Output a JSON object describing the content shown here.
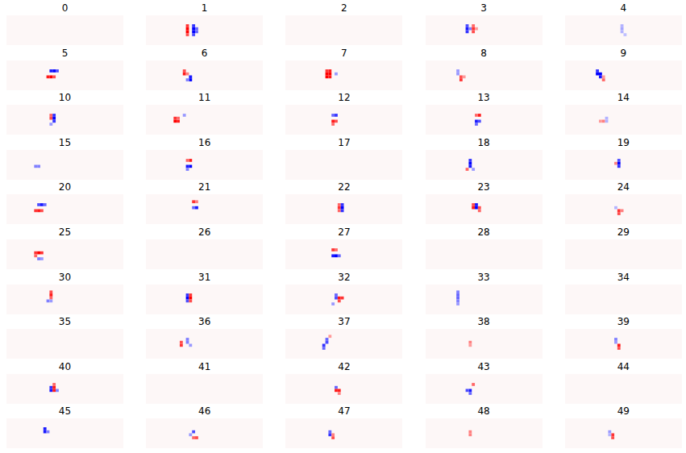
{
  "chart_data": {
    "type": "heatmap",
    "tick_labels": false,
    "grid_size": [
      38,
      10
    ],
    "color_range": [
      -1,
      1
    ],
    "panels": [
      {
        "title": "0",
        "cells": []
      },
      {
        "title": "1",
        "cells": [
          [
            13,
            3,
            0.8
          ],
          [
            13,
            4,
            1
          ],
          [
            13,
            5,
            1
          ],
          [
            13,
            6,
            0.7
          ],
          [
            15,
            3,
            -0.8
          ],
          [
            15,
            4,
            -1
          ],
          [
            15,
            5,
            -1
          ],
          [
            15,
            6,
            -0.7
          ],
          [
            16,
            4,
            -0.6
          ],
          [
            16,
            5,
            -0.6
          ]
        ]
      },
      {
        "title": "2",
        "cells": []
      },
      {
        "title": "3",
        "cells": [
          [
            13,
            3,
            -0.7
          ],
          [
            13,
            4,
            -0.9
          ],
          [
            13,
            5,
            -0.8
          ],
          [
            14,
            4,
            -0.5
          ],
          [
            15,
            3,
            0.6
          ],
          [
            15,
            4,
            0.8
          ],
          [
            15,
            5,
            0.7
          ],
          [
            16,
            4,
            0.4
          ]
        ]
      },
      {
        "title": "4",
        "cells": [
          [
            18,
            3,
            -0.3
          ],
          [
            18,
            4,
            -0.35
          ],
          [
            18,
            5,
            -0.3
          ],
          [
            19,
            6,
            -0.25
          ]
        ]
      },
      {
        "title": "5",
        "cells": [
          [
            14,
            3,
            -0.9
          ],
          [
            15,
            3,
            -1
          ],
          [
            16,
            3,
            -0.7
          ],
          [
            13,
            5,
            0.9
          ],
          [
            14,
            5,
            1
          ],
          [
            15,
            5,
            0.7
          ]
        ]
      },
      {
        "title": "6",
        "cells": [
          [
            12,
            3,
            0.7
          ],
          [
            12,
            4,
            0.9
          ],
          [
            13,
            4,
            0.5
          ],
          [
            14,
            5,
            -0.9
          ],
          [
            14,
            6,
            -1
          ],
          [
            13,
            6,
            -0.5
          ]
        ]
      },
      {
        "title": "7",
        "cells": [
          [
            13,
            3,
            0.8
          ],
          [
            13,
            4,
            1
          ],
          [
            13,
            5,
            1
          ],
          [
            14,
            3,
            0.9
          ],
          [
            14,
            4,
            1
          ],
          [
            14,
            5,
            0.9
          ],
          [
            16,
            4,
            -0.4
          ]
        ]
      },
      {
        "title": "8",
        "cells": [
          [
            10,
            3,
            -0.4
          ],
          [
            10,
            4,
            -0.4
          ],
          [
            11,
            5,
            0.7
          ],
          [
            11,
            6,
            0.8
          ],
          [
            12,
            5,
            0.4
          ]
        ]
      },
      {
        "title": "9",
        "cells": [
          [
            10,
            3,
            -0.8
          ],
          [
            10,
            4,
            -1
          ],
          [
            11,
            4,
            -1
          ],
          [
            11,
            5,
            -0.9
          ],
          [
            12,
            6,
            0.6
          ],
          [
            12,
            5,
            0.4
          ]
        ]
      },
      {
        "title": "10",
        "cells": [
          [
            14,
            3,
            0.6
          ],
          [
            14,
            4,
            0.7
          ],
          [
            15,
            3,
            -0.8
          ],
          [
            15,
            4,
            -1
          ],
          [
            15,
            5,
            -0.8
          ],
          [
            14,
            6,
            -0.4
          ]
        ]
      },
      {
        "title": "11",
        "cells": [
          [
            9,
            4,
            0.8
          ],
          [
            9,
            5,
            1
          ],
          [
            10,
            5,
            0.9
          ],
          [
            10,
            4,
            0.6
          ],
          [
            12,
            3,
            -0.4
          ]
        ]
      },
      {
        "title": "12",
        "cells": [
          [
            16,
            3,
            -0.8
          ],
          [
            15,
            3,
            -0.6
          ],
          [
            15,
            5,
            0.9
          ],
          [
            16,
            5,
            0.7
          ],
          [
            15,
            6,
            0.6
          ]
        ]
      },
      {
        "title": "13",
        "cells": [
          [
            17,
            3,
            0.9
          ],
          [
            16,
            3,
            0.6
          ],
          [
            16,
            5,
            -0.9
          ],
          [
            17,
            5,
            -0.7
          ],
          [
            16,
            6,
            -0.6
          ]
        ]
      },
      {
        "title": "14",
        "cells": [
          [
            11,
            5,
            0.4
          ],
          [
            12,
            5,
            0.5
          ],
          [
            13,
            4,
            -0.3
          ],
          [
            13,
            5,
            -0.3
          ]
        ]
      },
      {
        "title": "15",
        "cells": [
          [
            9,
            5,
            -0.5
          ],
          [
            10,
            5,
            -0.5
          ]
        ]
      },
      {
        "title": "16",
        "cells": [
          [
            14,
            3,
            0.9
          ],
          [
            13,
            3,
            0.6
          ],
          [
            13,
            5,
            -0.9
          ],
          [
            14,
            5,
            -1
          ],
          [
            13,
            6,
            -0.5
          ]
        ]
      },
      {
        "title": "17",
        "cells": []
      },
      {
        "title": "18",
        "cells": [
          [
            14,
            3,
            -0.8
          ],
          [
            14,
            4,
            -1
          ],
          [
            14,
            5,
            -0.9
          ],
          [
            13,
            6,
            0.6
          ],
          [
            15,
            6,
            -0.4
          ]
        ]
      },
      {
        "title": "19",
        "cells": [
          [
            17,
            3,
            -0.7
          ],
          [
            17,
            4,
            -1
          ],
          [
            17,
            5,
            -0.8
          ],
          [
            16,
            4,
            0.5
          ]
        ]
      },
      {
        "title": "20",
        "cells": [
          [
            10,
            3,
            -0.7
          ],
          [
            11,
            3,
            -0.9
          ],
          [
            12,
            3,
            -0.6
          ],
          [
            9,
            5,
            0.8
          ],
          [
            10,
            5,
            0.9
          ],
          [
            11,
            5,
            0.7
          ]
        ]
      },
      {
        "title": "21",
        "cells": [
          [
            15,
            2,
            0.8
          ],
          [
            16,
            2,
            0.5
          ],
          [
            16,
            4,
            -0.9
          ],
          [
            15,
            4,
            -0.6
          ]
        ]
      },
      {
        "title": "22",
        "cells": [
          [
            17,
            3,
            0.6
          ],
          [
            17,
            4,
            0.8
          ],
          [
            17,
            5,
            0.6
          ],
          [
            18,
            3,
            -0.8
          ],
          [
            18,
            4,
            -1
          ],
          [
            18,
            5,
            -0.8
          ]
        ]
      },
      {
        "title": "23",
        "cells": [
          [
            15,
            3,
            0.7
          ],
          [
            15,
            4,
            0.9
          ],
          [
            16,
            3,
            -0.9
          ],
          [
            16,
            4,
            -1
          ],
          [
            17,
            4,
            0.7
          ],
          [
            17,
            5,
            0.6
          ]
        ]
      },
      {
        "title": "24",
        "cells": [
          [
            17,
            5,
            0.8
          ],
          [
            17,
            6,
            0.7
          ],
          [
            18,
            5,
            0.5
          ],
          [
            16,
            4,
            -0.3
          ]
        ]
      },
      {
        "title": "25",
        "cells": [
          [
            9,
            4,
            0.8
          ],
          [
            10,
            4,
            1
          ],
          [
            11,
            4,
            0.8
          ],
          [
            9,
            5,
            0.6
          ],
          [
            10,
            6,
            -0.5
          ],
          [
            11,
            6,
            -0.4
          ]
        ]
      },
      {
        "title": "26",
        "cells": []
      },
      {
        "title": "27",
        "cells": [
          [
            15,
            3,
            0.8
          ],
          [
            16,
            3,
            0.6
          ],
          [
            15,
            5,
            -0.9
          ],
          [
            16,
            5,
            -1
          ],
          [
            17,
            5,
            -0.6
          ]
        ]
      },
      {
        "title": "28",
        "cells": []
      },
      {
        "title": "29",
        "cells": []
      },
      {
        "title": "30",
        "cells": [
          [
            14,
            2,
            0.7
          ],
          [
            14,
            3,
            0.9
          ],
          [
            14,
            4,
            0.6
          ],
          [
            13,
            5,
            -0.5
          ],
          [
            14,
            5,
            -0.4
          ]
        ]
      },
      {
        "title": "31",
        "cells": [
          [
            13,
            3,
            -0.8
          ],
          [
            13,
            4,
            -1
          ],
          [
            13,
            5,
            -0.7
          ],
          [
            14,
            3,
            0.8
          ],
          [
            14,
            4,
            1
          ],
          [
            14,
            5,
            0.7
          ]
        ]
      },
      {
        "title": "32",
        "cells": [
          [
            16,
            3,
            -0.6
          ],
          [
            16,
            4,
            -0.7
          ],
          [
            17,
            4,
            0.9
          ],
          [
            18,
            4,
            0.8
          ],
          [
            17,
            5,
            0.7
          ],
          [
            15,
            6,
            -0.4
          ]
        ]
      },
      {
        "title": "33",
        "cells": [
          [
            10,
            2,
            -0.5
          ],
          [
            10,
            3,
            -0.6
          ],
          [
            10,
            4,
            -0.6
          ],
          [
            10,
            5,
            -0.5
          ],
          [
            10,
            6,
            -0.4
          ]
        ]
      },
      {
        "title": "34",
        "cells": []
      },
      {
        "title": "35",
        "cells": []
      },
      {
        "title": "36",
        "cells": [
          [
            11,
            4,
            0.7
          ],
          [
            11,
            5,
            0.8
          ],
          [
            13,
            3,
            -0.5
          ],
          [
            13,
            4,
            -0.5
          ],
          [
            14,
            5,
            -0.4
          ]
        ]
      },
      {
        "title": "37",
        "cells": [
          [
            13,
            3,
            -0.6
          ],
          [
            13,
            4,
            -0.7
          ],
          [
            12,
            5,
            -0.8
          ],
          [
            12,
            6,
            -0.6
          ],
          [
            14,
            2,
            0.4
          ]
        ]
      },
      {
        "title": "38",
        "cells": [
          [
            14,
            4,
            0.5
          ],
          [
            14,
            5,
            0.4
          ]
        ]
      },
      {
        "title": "39",
        "cells": [
          [
            17,
            5,
            0.9
          ],
          [
            17,
            6,
            0.7
          ],
          [
            16,
            3,
            -0.5
          ],
          [
            16,
            4,
            -0.4
          ]
        ]
      },
      {
        "title": "40",
        "cells": [
          [
            14,
            4,
            -0.8
          ],
          [
            14,
            5,
            -0.9
          ],
          [
            15,
            3,
            0.6
          ],
          [
            15,
            4,
            0.9
          ],
          [
            15,
            5,
            0.9
          ],
          [
            16,
            5,
            -0.5
          ]
        ]
      },
      {
        "title": "41",
        "cells": []
      },
      {
        "title": "42",
        "cells": [
          [
            16,
            4,
            -0.6
          ],
          [
            16,
            5,
            0.9
          ],
          [
            17,
            5,
            0.9
          ],
          [
            17,
            6,
            0.5
          ]
        ]
      },
      {
        "title": "43",
        "cells": [
          [
            15,
            3,
            0.6
          ],
          [
            14,
            5,
            -0.9
          ],
          [
            13,
            5,
            -0.7
          ],
          [
            14,
            6,
            -0.6
          ]
        ]
      },
      {
        "title": "44",
        "cells": []
      },
      {
        "title": "45",
        "cells": [
          [
            12,
            3,
            -0.9
          ],
          [
            12,
            4,
            -0.9
          ],
          [
            13,
            4,
            -0.5
          ]
        ]
      },
      {
        "title": "46",
        "cells": [
          [
            15,
            4,
            -0.7
          ],
          [
            15,
            6,
            0.6
          ],
          [
            16,
            6,
            0.7
          ],
          [
            14,
            5,
            -0.4
          ]
        ]
      },
      {
        "title": "47",
        "cells": [
          [
            14,
            4,
            -0.6
          ],
          [
            14,
            5,
            -0.8
          ],
          [
            15,
            6,
            0.7
          ],
          [
            15,
            5,
            0.5
          ]
        ]
      },
      {
        "title": "48",
        "cells": [
          [
            14,
            4,
            0.5
          ],
          [
            14,
            5,
            0.5
          ]
        ]
      },
      {
        "title": "49",
        "cells": [
          [
            15,
            5,
            0.8
          ],
          [
            15,
            6,
            0.7
          ],
          [
            14,
            4,
            -0.4
          ],
          [
            14,
            5,
            -0.3
          ]
        ]
      }
    ]
  }
}
